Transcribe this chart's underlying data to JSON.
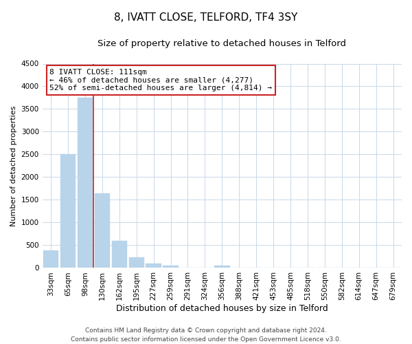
{
  "title": "8, IVATT CLOSE, TELFORD, TF4 3SY",
  "subtitle": "Size of property relative to detached houses in Telford",
  "xlabel": "Distribution of detached houses by size in Telford",
  "ylabel": "Number of detached properties",
  "categories": [
    "33sqm",
    "65sqm",
    "98sqm",
    "130sqm",
    "162sqm",
    "195sqm",
    "227sqm",
    "259sqm",
    "291sqm",
    "324sqm",
    "356sqm",
    "388sqm",
    "421sqm",
    "453sqm",
    "485sqm",
    "518sqm",
    "550sqm",
    "582sqm",
    "614sqm",
    "647sqm",
    "679sqm"
  ],
  "values": [
    380,
    2500,
    3750,
    1640,
    600,
    240,
    100,
    55,
    0,
    0,
    55,
    0,
    0,
    0,
    0,
    0,
    0,
    0,
    0,
    0,
    0
  ],
  "bar_color": "#b8d4ea",
  "vline_color": "#cc2222",
  "vline_bar_index": 2,
  "ylim": [
    0,
    4500
  ],
  "yticks": [
    0,
    500,
    1000,
    1500,
    2000,
    2500,
    3000,
    3500,
    4000,
    4500
  ],
  "annotation_title": "8 IVATT CLOSE: 111sqm",
  "annotation_line1": "← 46% of detached houses are smaller (4,277)",
  "annotation_line2": "52% of semi-detached houses are larger (4,814) →",
  "annotation_box_facecolor": "#ffffff",
  "annotation_box_edgecolor": "#cc2222",
  "footer_line1": "Contains HM Land Registry data © Crown copyright and database right 2024.",
  "footer_line2": "Contains public sector information licensed under the Open Government Licence v3.0.",
  "bg_color": "#ffffff",
  "grid_color": "#c8d8e8",
  "title_fontsize": 11,
  "subtitle_fontsize": 9.5,
  "axis_label_fontsize": 9,
  "ylabel_fontsize": 8,
  "tick_fontsize": 7.5,
  "annotation_fontsize": 8,
  "footer_fontsize": 6.5
}
